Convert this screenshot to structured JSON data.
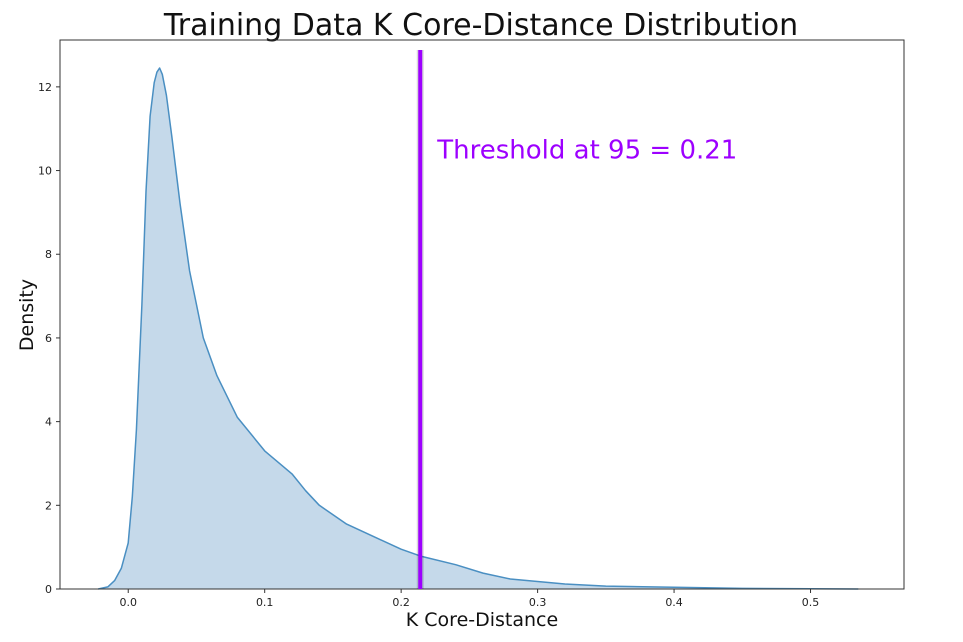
{
  "chart_data": {
    "type": "area",
    "title": "Training Data K Core-Distance Distribution",
    "xlabel": "K Core-Distance",
    "ylabel": "Density",
    "xlim": [
      -0.05,
      0.5685
    ],
    "ylim": [
      0,
      13.12
    ],
    "xticks": [
      0.0,
      0.1,
      0.2,
      0.3,
      0.4,
      0.5
    ],
    "xtick_labels": [
      "0.0",
      "0.1",
      "0.2",
      "0.3",
      "0.4",
      "0.5"
    ],
    "yticks": [
      0,
      2,
      4,
      6,
      8,
      10,
      12
    ],
    "ytick_labels": [
      "0",
      "2",
      "4",
      "6",
      "8",
      "10",
      "12"
    ],
    "grid": false,
    "series": [
      {
        "x": [
          -0.022,
          -0.015,
          -0.01,
          -0.005,
          0.0,
          0.003,
          0.006,
          0.01,
          0.013,
          0.016,
          0.019,
          0.021,
          0.023,
          0.025,
          0.028,
          0.032,
          0.038,
          0.045,
          0.055,
          0.065,
          0.08,
          0.1,
          0.12,
          0.13,
          0.14,
          0.16,
          0.18,
          0.2,
          0.215,
          0.24,
          0.26,
          0.28,
          0.3,
          0.32,
          0.35,
          0.4,
          0.45,
          0.5,
          0.535
        ],
        "y": [
          0,
          0.05,
          0.2,
          0.5,
          1.1,
          2.2,
          3.8,
          6.8,
          9.5,
          11.3,
          12.1,
          12.35,
          12.45,
          12.3,
          11.8,
          10.8,
          9.2,
          7.6,
          6.0,
          5.1,
          4.1,
          3.3,
          2.75,
          2.35,
          2.0,
          1.55,
          1.25,
          0.95,
          0.78,
          0.58,
          0.38,
          0.24,
          0.18,
          0.12,
          0.07,
          0.04,
          0.015,
          0.006,
          0
        ]
      }
    ],
    "threshold": {
      "x": 0.214,
      "label": "Threshold at 95 = 0.21",
      "label_y": 10.5
    },
    "colors": {
      "fill": "#c5d9ea",
      "line": "#4a8fc2",
      "threshold": "#9d00ff",
      "axis": "#333333"
    }
  }
}
